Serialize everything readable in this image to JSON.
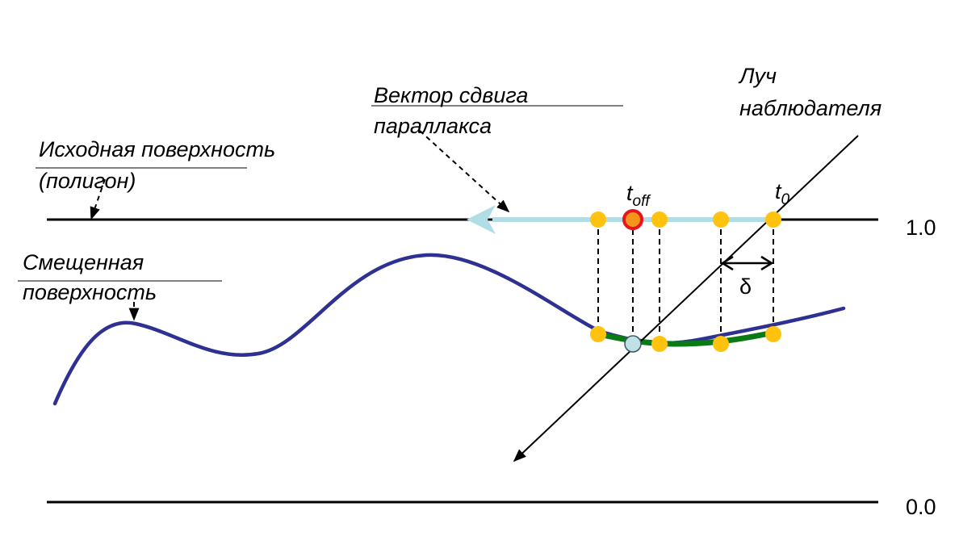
{
  "labels": {
    "original_surface_line1": "Исходная поверхность",
    "original_surface_line2": "(полигон)",
    "offset_vector_line1": "Вектор сдвига",
    "offset_vector_line2": "параллакса",
    "viewer_ray_line1": "Луч",
    "viewer_ray_line2": "наблюдателя",
    "displaced_surface_line1": "Смещенная",
    "displaced_surface_line2": "поверхность",
    "t_off_base": "t",
    "t_off_sub": "off",
    "t0_base": "t",
    "t0_sub": "0",
    "delta": "δ",
    "level_top": "1.0",
    "level_bottom": "0.0"
  },
  "colors": {
    "line": "#000000",
    "displaced_curve": "#2e3192",
    "offset_vector": "#b0dde6",
    "green_segment": "#0a7a14",
    "sample_point": "#ffc20e",
    "t_off_ring": "#e8141b",
    "t_off_fill": "#f7941d",
    "intersection_point": "#bfe0e6"
  }
}
